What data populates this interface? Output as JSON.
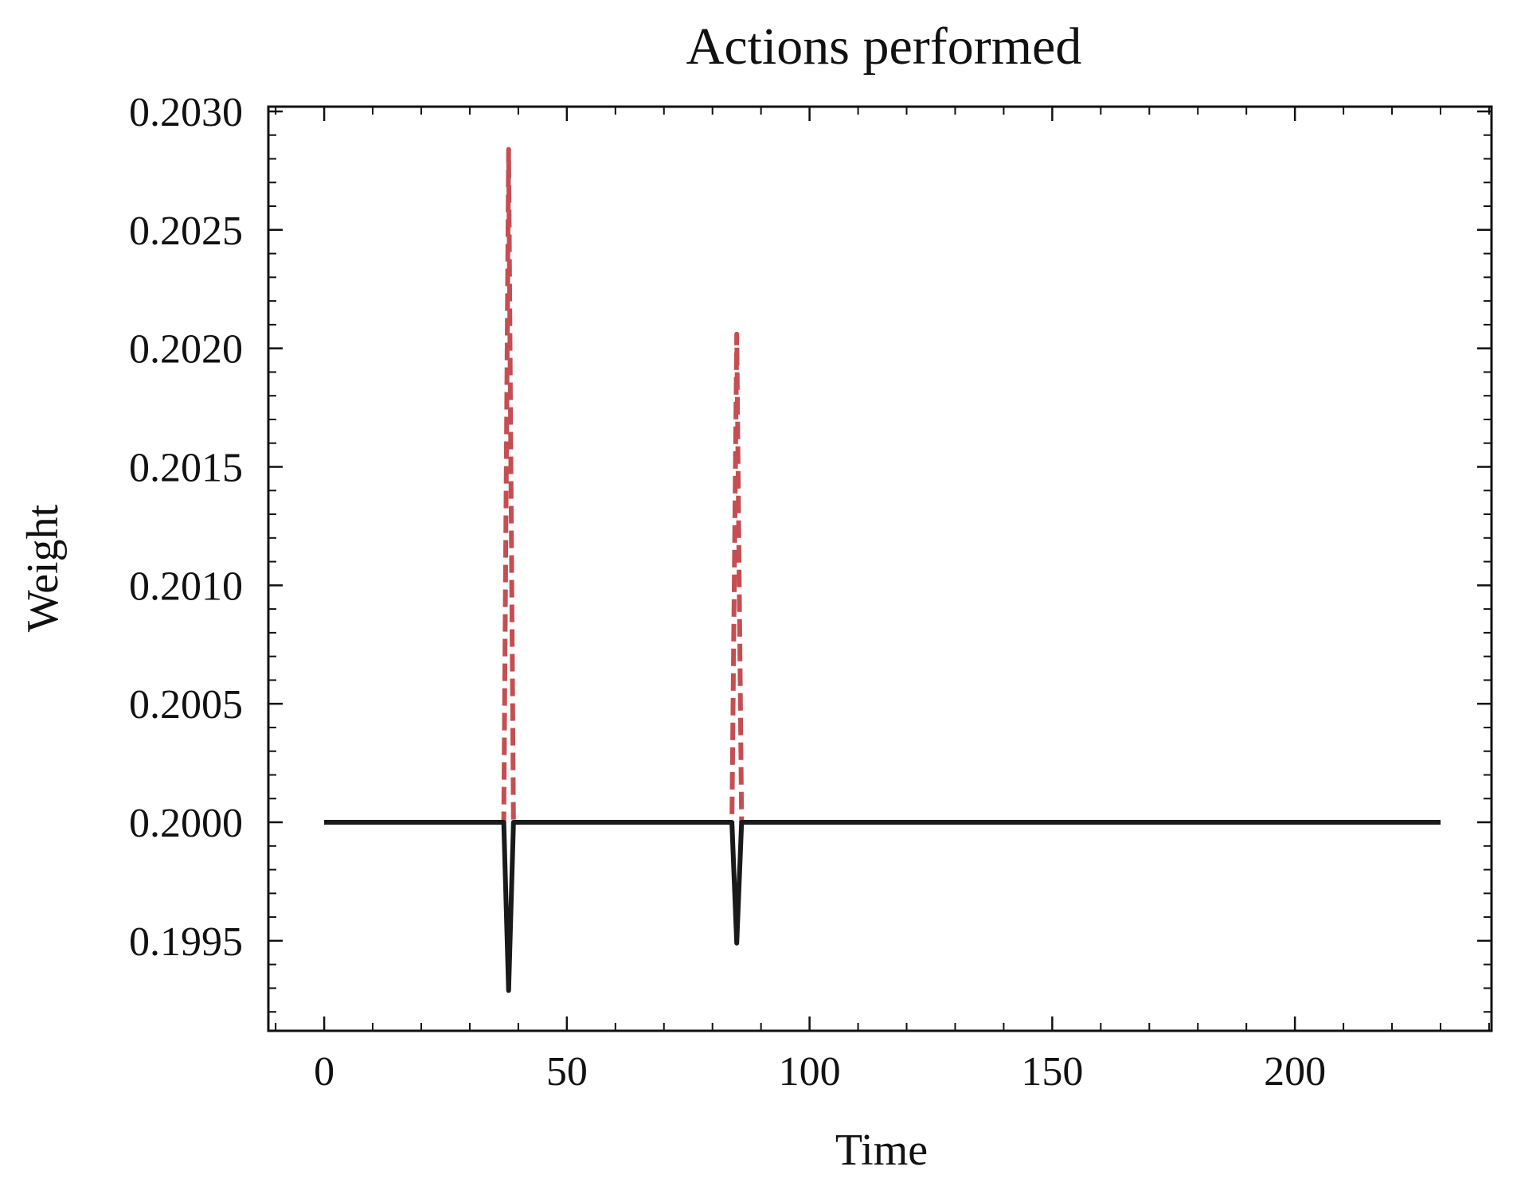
{
  "chart_data": {
    "type": "line",
    "title": "Actions performed",
    "xlabel": "Time",
    "ylabel": "Weight",
    "xlim": [
      -11.5,
      240.5
    ],
    "ylim": [
      0.19912,
      0.20302
    ],
    "xticks": [
      0,
      50,
      100,
      150,
      200
    ],
    "xtick_labels": [
      "0",
      "50",
      "100",
      "150",
      "200"
    ],
    "yticks": [
      0.1995,
      0.2,
      0.2005,
      0.201,
      0.2015,
      0.202,
      0.2025,
      0.203
    ],
    "ytick_labels": [
      "0.1995",
      "0.2000",
      "0.2005",
      "0.2010",
      "0.2015",
      "0.2020",
      "0.2025",
      "0.2030"
    ],
    "grid": false,
    "legend": "none",
    "series": [
      {
        "style": "dashed",
        "color": "#c44e52",
        "x": [
          0,
          37,
          38,
          39,
          84,
          85,
          86,
          230
        ],
        "y": [
          0.2,
          0.2,
          0.20284,
          0.2,
          0.2,
          0.20206,
          0.2,
          0.2
        ]
      },
      {
        "style": "solid",
        "color": "#1a1a1a",
        "x": [
          0,
          37,
          38,
          39,
          84,
          85,
          86,
          230
        ],
        "y": [
          0.2,
          0.2,
          0.19929,
          0.2,
          0.2,
          0.19949,
          0.2,
          0.2
        ]
      }
    ]
  }
}
